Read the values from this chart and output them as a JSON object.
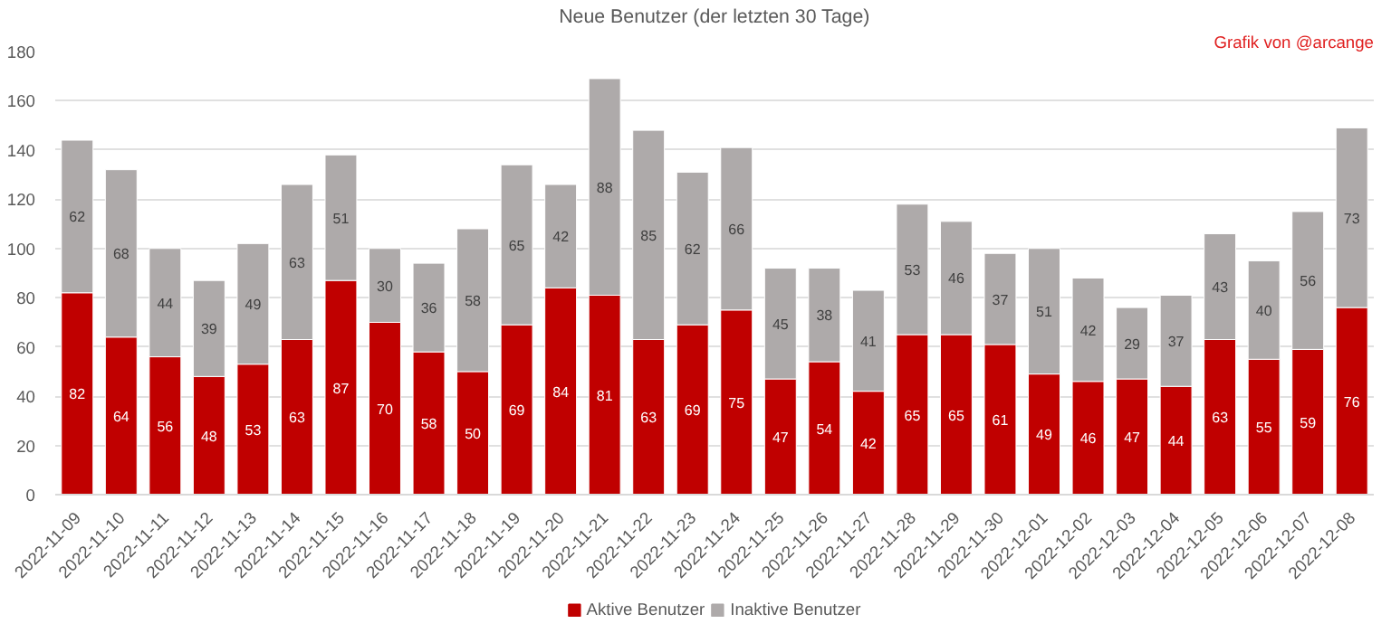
{
  "chart_data": {
    "type": "bar",
    "title": "Neue Benutzer (der letzten 30 Tage)",
    "annotations": [
      "Grafik von @arcange"
    ],
    "categories": [
      "2022-11-09",
      "2022-11-10",
      "2022-11-11",
      "2022-11-12",
      "2022-11-13",
      "2022-11-14",
      "2022-11-15",
      "2022-11-16",
      "2022-11-17",
      "2022-11-18",
      "2022-11-19",
      "2022-11-20",
      "2022-11-21",
      "2022-11-22",
      "2022-11-23",
      "2022-11-24",
      "2022-11-25",
      "2022-11-26",
      "2022-11-27",
      "2022-11-28",
      "2022-11-29",
      "2022-11-30",
      "2022-12-01",
      "2022-12-02",
      "2022-12-03",
      "2022-12-04",
      "2022-12-05",
      "2022-12-06",
      "2022-12-07",
      "2022-12-08"
    ],
    "series": [
      {
        "name": "Aktive Benutzer",
        "color": "#c00000",
        "values": [
          82,
          64,
          56,
          48,
          53,
          63,
          87,
          70,
          58,
          50,
          69,
          84,
          81,
          63,
          69,
          75,
          47,
          54,
          42,
          65,
          65,
          61,
          49,
          46,
          47,
          44,
          63,
          55,
          59,
          76
        ]
      },
      {
        "name": "Inaktive Benutzer",
        "color": "#aeaaaa",
        "values": [
          62,
          68,
          44,
          39,
          49,
          63,
          51,
          30,
          36,
          58,
          65,
          42,
          88,
          85,
          62,
          66,
          45,
          38,
          41,
          53,
          46,
          37,
          51,
          42,
          29,
          37,
          43,
          40,
          56,
          73
        ]
      }
    ],
    "stacked": true,
    "data_labels": true,
    "ylim": [
      0,
      180
    ],
    "yticks": [
      0,
      20,
      40,
      60,
      80,
      100,
      120,
      140,
      160,
      180
    ],
    "grid": "y",
    "legend": "bottom"
  }
}
